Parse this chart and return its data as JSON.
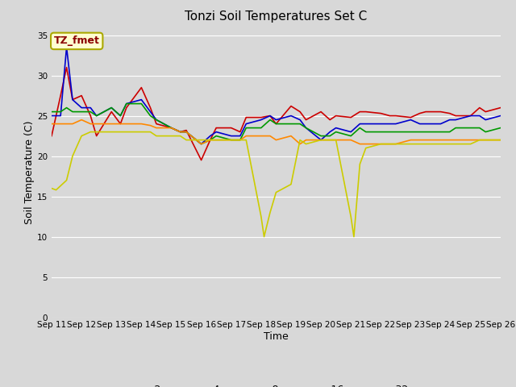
{
  "title": "Tonzi Soil Temperatures Set C",
  "xlabel": "Time",
  "ylabel": "Soil Temperature (C)",
  "ylim": [
    0,
    36
  ],
  "yticks": [
    0,
    5,
    10,
    15,
    20,
    25,
    30,
    35
  ],
  "x_labels": [
    "Sep 11",
    "Sep 12",
    "Sep 13",
    "Sep 14",
    "Sep 15",
    "Sep 16",
    "Sep 17",
    "Sep 18",
    "Sep 19",
    "Sep 20",
    "Sep 21",
    "Sep 22",
    "Sep 23",
    "Sep 24",
    "Sep 25",
    "Sep 26"
  ],
  "annotation_label": "TZ_fmet",
  "fig_bg": "#d8d8d8",
  "plot_bg": "#d8d8d8",
  "grid_color": "#ffffff",
  "series_colors": {
    "-2cm": "#cc0000",
    "-4cm": "#0000cc",
    "-8cm": "#009900",
    "-16cm": "#ff8800",
    "-32cm": "#cccc00"
  },
  "x_2cm": [
    0,
    0.3,
    0.5,
    0.7,
    1,
    1.3,
    1.5,
    2,
    2.3,
    2.5,
    3,
    3.3,
    3.5,
    4,
    4.3,
    4.5,
    5,
    5.3,
    5.5,
    6,
    6.3,
    6.5,
    7,
    7.3,
    7.5,
    8,
    8.3,
    8.5,
    9,
    9.3,
    9.5,
    10,
    10.3,
    10.5,
    11,
    11.3,
    11.5,
    12,
    12.3,
    12.5,
    13,
    13.3,
    13.5,
    14,
    14.3,
    14.5,
    15
  ],
  "y_2cm": [
    22.5,
    27.5,
    31.0,
    27.0,
    27.5,
    25.0,
    22.5,
    25.5,
    24.0,
    26.0,
    28.5,
    26.0,
    24.0,
    23.5,
    23.0,
    23.2,
    19.5,
    22.0,
    23.5,
    23.5,
    23.0,
    24.8,
    24.8,
    25.0,
    24.0,
    26.2,
    25.5,
    24.5,
    25.5,
    24.5,
    25.0,
    24.8,
    25.5,
    25.5,
    25.3,
    25.0,
    25.0,
    24.8,
    25.3,
    25.5,
    25.5,
    25.3,
    25.0,
    25.0,
    26.0,
    25.5,
    26.0
  ],
  "x_4cm": [
    0,
    0.3,
    0.5,
    0.7,
    1,
    1.3,
    1.5,
    2,
    2.3,
    2.5,
    3,
    3.3,
    3.5,
    4,
    4.3,
    4.5,
    5,
    5.3,
    5.5,
    6,
    6.3,
    6.5,
    7,
    7.3,
    7.5,
    8,
    8.3,
    8.5,
    9,
    9.3,
    9.5,
    10,
    10.3,
    10.5,
    11,
    11.3,
    11.5,
    12,
    12.3,
    12.5,
    13,
    13.3,
    13.5,
    14,
    14.3,
    14.5,
    15
  ],
  "y_4cm": [
    25.0,
    25.0,
    33.5,
    27.0,
    26.0,
    26.0,
    25.0,
    26.0,
    25.0,
    26.5,
    27.0,
    25.5,
    24.5,
    23.5,
    23.0,
    23.0,
    21.5,
    22.5,
    23.0,
    22.5,
    22.5,
    24.0,
    24.5,
    25.0,
    24.5,
    25.0,
    24.5,
    23.5,
    22.0,
    23.0,
    23.5,
    23.0,
    24.0,
    24.0,
    24.0,
    24.0,
    24.0,
    24.5,
    24.0,
    24.0,
    24.0,
    24.5,
    24.5,
    25.0,
    25.0,
    24.5,
    25.0
  ],
  "x_8cm": [
    0,
    0.3,
    0.5,
    0.7,
    1,
    1.3,
    1.5,
    2,
    2.3,
    2.5,
    3,
    3.3,
    3.5,
    4,
    4.3,
    4.5,
    5,
    5.3,
    5.5,
    6,
    6.3,
    6.5,
    7,
    7.3,
    7.5,
    8,
    8.3,
    8.5,
    9,
    9.3,
    9.5,
    10,
    10.3,
    10.5,
    11,
    11.3,
    11.5,
    12,
    12.3,
    12.5,
    13,
    13.3,
    13.5,
    14,
    14.3,
    14.5,
    15
  ],
  "y_8cm": [
    25.5,
    25.5,
    26.0,
    25.5,
    25.5,
    25.5,
    25.0,
    26.0,
    25.0,
    26.5,
    26.5,
    25.0,
    24.5,
    23.5,
    23.0,
    23.0,
    21.5,
    22.0,
    22.5,
    22.0,
    22.0,
    23.5,
    23.5,
    24.5,
    24.0,
    24.0,
    24.0,
    23.5,
    22.5,
    22.5,
    23.0,
    22.5,
    23.5,
    23.0,
    23.0,
    23.0,
    23.0,
    23.0,
    23.0,
    23.0,
    23.0,
    23.0,
    23.5,
    23.5,
    23.5,
    23.0,
    23.5
  ],
  "x_16cm": [
    0,
    0.3,
    0.5,
    0.7,
    1,
    1.3,
    1.5,
    2,
    2.3,
    2.5,
    3,
    3.3,
    3.5,
    4,
    4.3,
    4.5,
    5,
    5.3,
    5.5,
    6,
    6.3,
    6.5,
    7,
    7.3,
    7.5,
    8,
    8.3,
    8.5,
    9,
    9.3,
    9.5,
    10,
    10.3,
    10.5,
    11,
    11.3,
    11.5,
    12,
    12.3,
    12.5,
    13,
    13.3,
    13.5,
    14,
    14.3,
    14.5,
    15
  ],
  "y_16cm": [
    24.0,
    24.0,
    24.0,
    24.0,
    24.5,
    24.0,
    24.0,
    24.0,
    24.0,
    24.0,
    24.0,
    23.8,
    23.5,
    23.5,
    23.0,
    23.0,
    21.5,
    22.0,
    22.0,
    22.0,
    22.0,
    22.5,
    22.5,
    22.5,
    22.0,
    22.5,
    21.5,
    22.0,
    22.0,
    22.0,
    22.0,
    22.0,
    21.5,
    21.5,
    21.5,
    21.5,
    21.5,
    22.0,
    22.0,
    22.0,
    22.0,
    22.0,
    22.0,
    22.0,
    22.0,
    22.0,
    22.0
  ],
  "x_32cm": [
    0,
    0.15,
    0.5,
    0.7,
    1,
    1.3,
    1.5,
    2,
    2.3,
    2.5,
    3,
    3.3,
    3.5,
    4,
    4.3,
    4.5,
    5,
    5.3,
    5.5,
    6,
    6.3,
    6.5,
    7,
    7.1,
    7.3,
    7.5,
    8,
    8.3,
    8.5,
    9,
    9.3,
    9.5,
    10,
    10.1,
    10.3,
    10.5,
    11,
    11.3,
    11.5,
    12,
    12.3,
    12.5,
    13,
    13.3,
    13.5,
    14,
    14.3,
    14.5,
    15
  ],
  "y_32cm": [
    16.0,
    15.8,
    17.0,
    20.0,
    22.5,
    23.0,
    23.0,
    23.0,
    23.0,
    23.0,
    23.0,
    23.0,
    22.5,
    22.5,
    22.5,
    22.0,
    22.0,
    22.0,
    22.0,
    22.0,
    22.0,
    22.0,
    12.5,
    10.0,
    13.0,
    15.5,
    16.5,
    22.0,
    21.5,
    22.0,
    22.0,
    22.0,
    12.5,
    10.0,
    19.0,
    21.0,
    21.5,
    21.5,
    21.5,
    21.5,
    21.5,
    21.5,
    21.5,
    21.5,
    21.5,
    21.5,
    22.0,
    22.0,
    22.0
  ]
}
